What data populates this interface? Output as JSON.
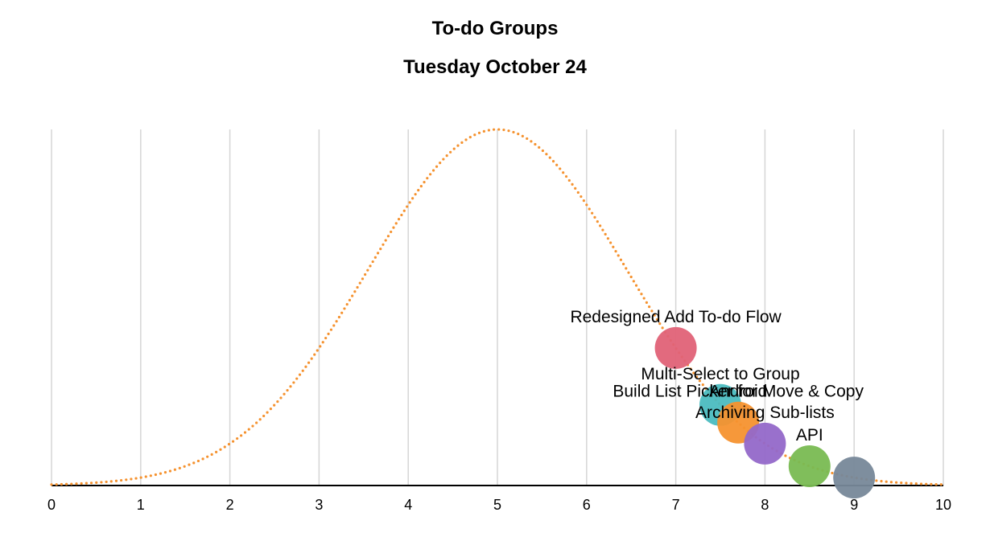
{
  "header": {
    "title": "To-do Groups",
    "subtitle": "Tuesday October 24"
  },
  "colors": {
    "curve": "#f5922f",
    "grid": "#d6d6d6",
    "axis": "#000000"
  },
  "chart_data": {
    "type": "scatter",
    "title": "To-do Groups",
    "subtitle": "Tuesday October 24",
    "xlabel": "",
    "ylabel": "",
    "xlim": [
      0,
      10
    ],
    "ylim": [
      0,
      1
    ],
    "x_ticks": [
      0,
      1,
      2,
      3,
      4,
      5,
      6,
      7,
      8,
      9,
      10
    ],
    "grid": true,
    "curve": {
      "kind": "gaussian",
      "mean": 5,
      "sd": 1.45,
      "style": "dotted",
      "color": "#f5922f"
    },
    "points": [
      {
        "label": "Redesigned Add To-do Flow",
        "x": 7.0,
        "color": "#e06277"
      },
      {
        "label": "Multi-Select to Group",
        "x": 7.5,
        "color": "#4bbcc0"
      },
      {
        "label": "Build List Picker for Move & Copy",
        "x": 7.7,
        "color": "#f5922f"
      },
      {
        "label": "Android",
        "x": 7.7,
        "color": "#f5922f"
      },
      {
        "label": "Archiving Sub-lists",
        "x": 8.0,
        "color": "#9468c9"
      },
      {
        "label": "API",
        "x": 8.5,
        "color": "#79bb52"
      },
      {
        "label": "",
        "x": 9.0,
        "color": "#778899"
      }
    ]
  }
}
